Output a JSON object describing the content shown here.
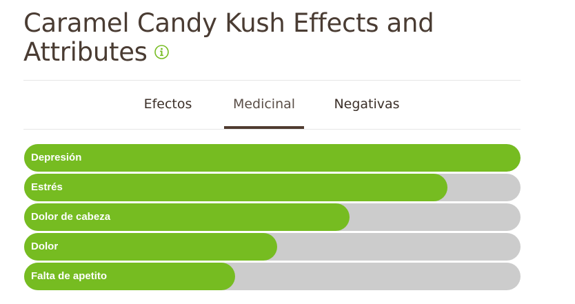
{
  "header": {
    "title": "Caramel Candy Kush Effects and Attributes",
    "info_icon": "info-circle-icon",
    "info_icon_color": "#76bc21"
  },
  "tabs": [
    {
      "label": "Efectos",
      "active": false
    },
    {
      "label": "Medicinal",
      "active": true
    },
    {
      "label": "Negativas",
      "active": false
    }
  ],
  "colors": {
    "fill": "#76bc21",
    "track": "#cccccc",
    "active_underline": "#4f3b30",
    "title": "#4a3c33"
  },
  "attributes": [
    {
      "label": "Depresión",
      "level": 1.0
    },
    {
      "label": "Estrés",
      "level": 0.853
    },
    {
      "label": "Dolor de cabeza",
      "level": 0.656
    },
    {
      "label": "Dolor",
      "level": 0.51
    },
    {
      "label": "Falta de apetito",
      "level": 0.425
    }
  ]
}
